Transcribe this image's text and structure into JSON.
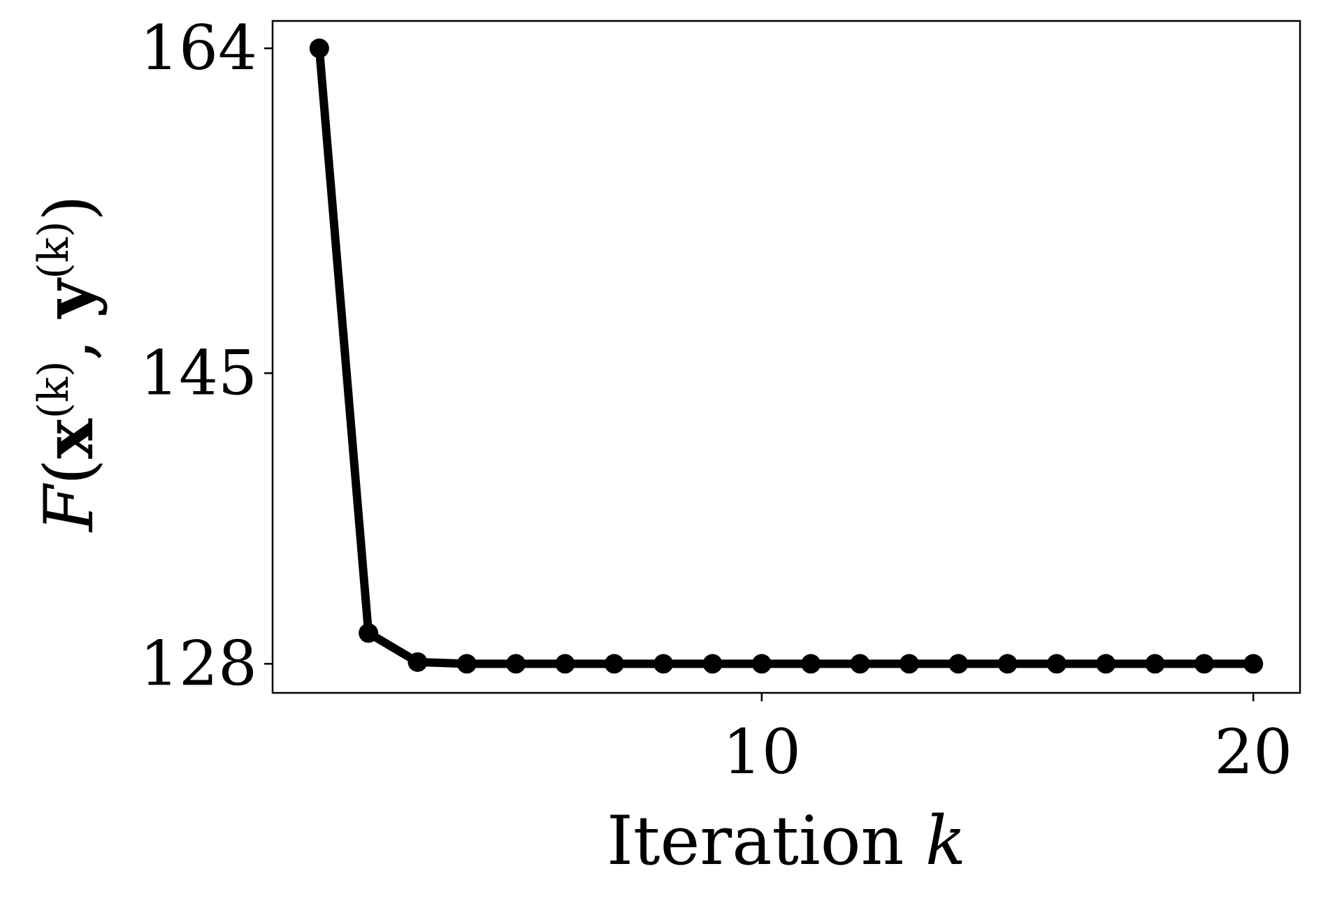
{
  "chart_data": {
    "type": "line",
    "title": "",
    "xlabel": {
      "text": "Iteration",
      "variable": "k"
    },
    "ylabel": {
      "func": "F",
      "x_var": "x",
      "y_var": "y",
      "sup": "(k)"
    },
    "x_ticks": [
      10,
      20
    ],
    "y_ticks": [
      128,
      145,
      164
    ],
    "xlim": [
      0.05,
      20.95
    ],
    "ylim": [
      126.3,
      165.6
    ],
    "grid": false,
    "legend": "none",
    "line_color": "#000000",
    "series": [
      {
        "x": [
          1,
          2,
          3,
          4,
          5,
          6,
          7,
          8,
          9,
          10,
          11,
          12,
          13,
          14,
          15,
          16,
          17,
          18,
          19,
          20
        ],
        "values": [
          164.0,
          129.8,
          128.1,
          128.0,
          128.0,
          128.0,
          128.0,
          128.0,
          128.0,
          128.0,
          128.0,
          128.0,
          128.0,
          128.0,
          128.0,
          128.0,
          128.0,
          128.0,
          128.0,
          128.0
        ]
      }
    ]
  }
}
